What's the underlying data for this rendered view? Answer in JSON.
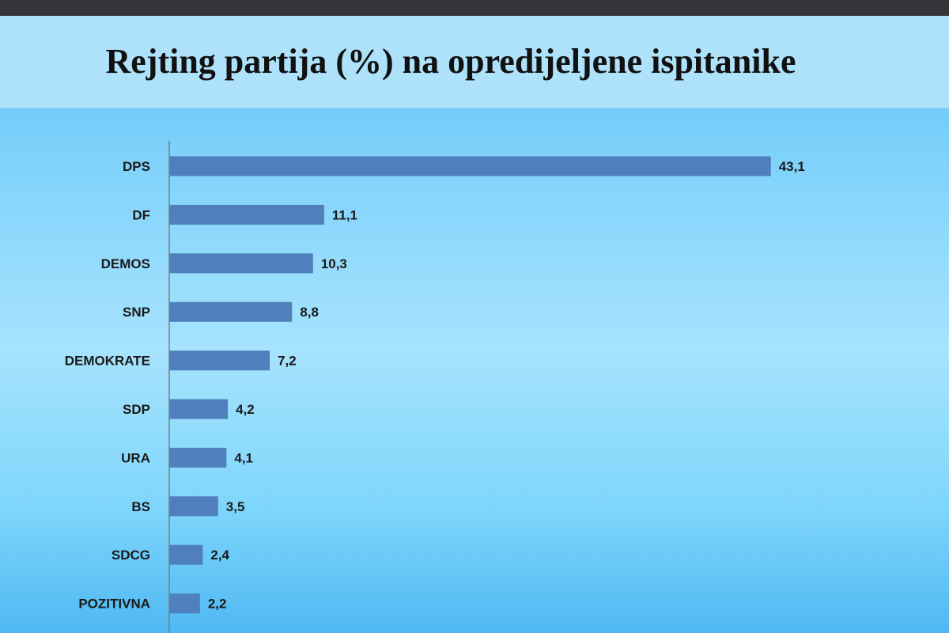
{
  "header": {
    "title": "Rejting partija (%) na opredijeljene ispitanike"
  },
  "colors": {
    "bar": "#4f7fbc",
    "axis": "#7a7f86"
  },
  "chart_data": {
    "type": "bar",
    "orientation": "horizontal",
    "title": "Rejting partija (%) na opredijeljene ispitanike",
    "xlabel": "",
    "ylabel": "",
    "categories": [
      "DPS",
      "DF",
      "DEMOS",
      "SNP",
      "DEMOKRATE",
      "SDP",
      "URA",
      "BS",
      "SDCG",
      "POZITIVNA"
    ],
    "values": [
      43.1,
      11.1,
      10.3,
      8.8,
      7.2,
      4.2,
      4.1,
      3.5,
      2.4,
      2.2
    ],
    "value_labels": [
      "43,1",
      "11,1",
      "10,3",
      "8,8",
      "7,2",
      "4,2",
      "4,1",
      "3,5",
      "2,4",
      "2,2"
    ],
    "xlim": [
      0,
      45
    ],
    "grid": false,
    "legend": "none"
  }
}
